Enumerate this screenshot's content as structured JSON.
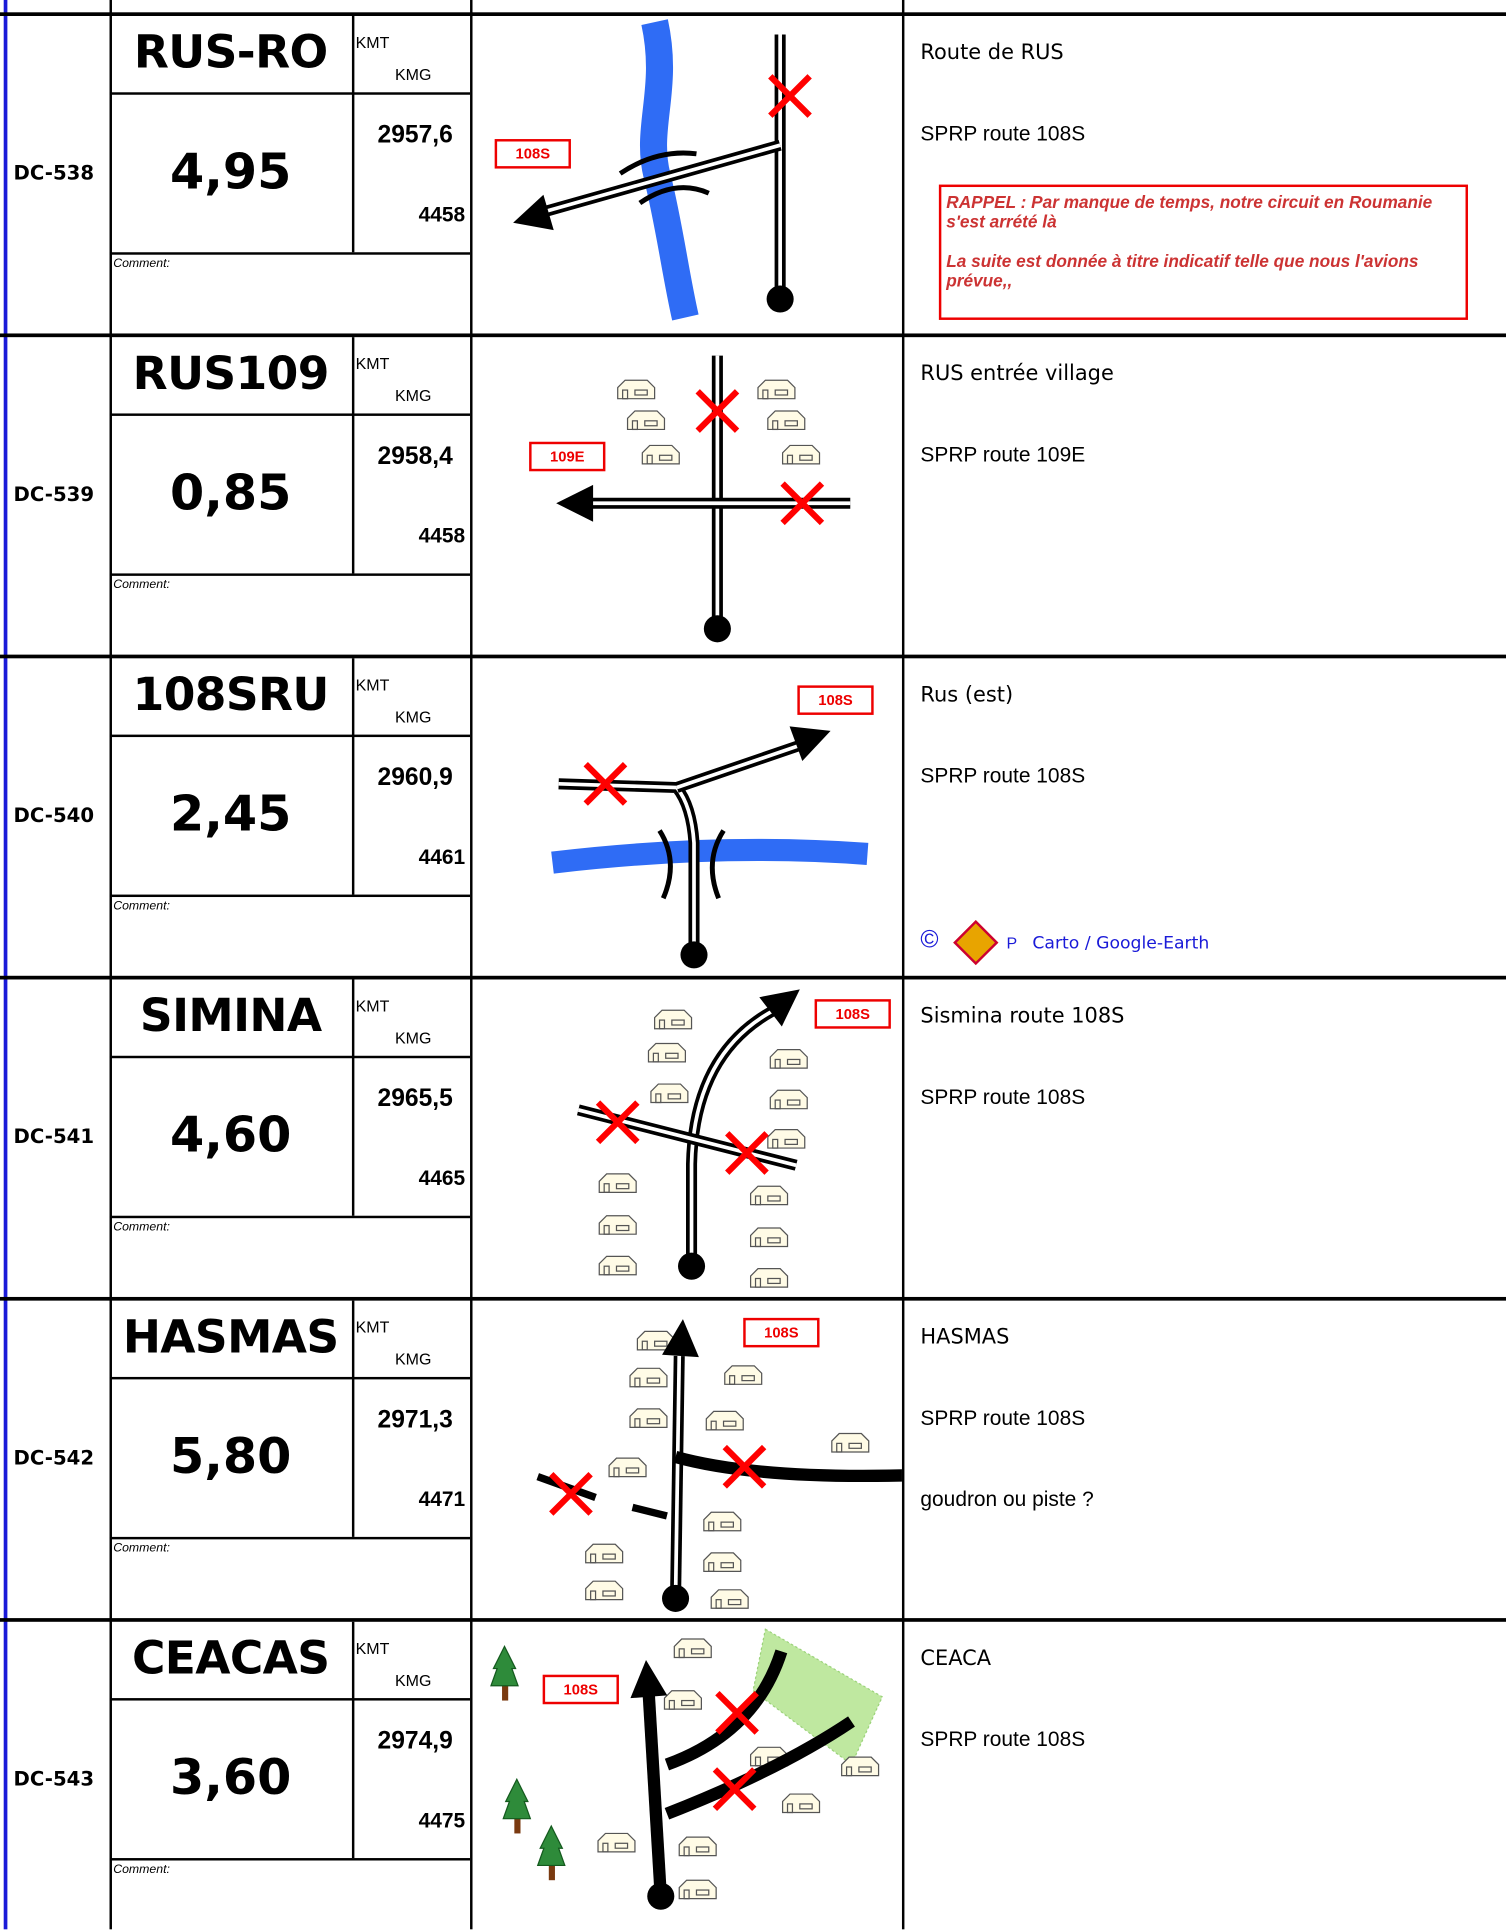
{
  "rows": [
    {
      "id": "DC-538",
      "code": "RUS-RO",
      "kmt_label": "KMT",
      "kmg_label": "KMG",
      "distance": "4,95",
      "kmt": "2957,6",
      "kmg": "4458",
      "comment_label": "Comment:",
      "road_label": "108S",
      "notes": [
        "Route de RUS",
        "SPRP route 108S"
      ]
    },
    {
      "id": "DC-539",
      "code": "RUS109",
      "kmt_label": "KMT",
      "kmg_label": "KMG",
      "distance": "0,85",
      "kmt": "2958,4",
      "kmg": "4458",
      "comment_label": "Comment:",
      "road_label": "109E",
      "notes": [
        "RUS entrée village",
        "SPRP route 109E"
      ]
    },
    {
      "id": "DC-540",
      "code": "108SRU",
      "kmt_label": "KMT",
      "kmg_label": "KMG",
      "distance": "2,45",
      "kmt": "2960,9",
      "kmg": "4461",
      "comment_label": "Comment:",
      "road_label": "108S",
      "notes": [
        "Rus (est)",
        "SPRP route 108S"
      ]
    },
    {
      "id": "DC-541",
      "code": "SIMINA",
      "kmt_label": "KMT",
      "kmg_label": "KMG",
      "distance": "4,60",
      "kmt": "2965,5",
      "kmg": "4465",
      "comment_label": "Comment:",
      "road_label": "108S",
      "notes": [
        "Sismina route 108S",
        "SPRP route 108S"
      ]
    },
    {
      "id": "DC-542",
      "code": "HASMAS",
      "kmt_label": "KMT",
      "kmg_label": "KMG",
      "distance": "5,80",
      "kmt": "2971,3",
      "kmg": "4471",
      "comment_label": "Comment:",
      "road_label": "108S",
      "notes": [
        "HASMAS",
        "SPRP route 108S",
        "goudron ou piste ?"
      ]
    },
    {
      "id": "DC-543",
      "code": "CEACAS",
      "kmt_label": "KMT",
      "kmg_label": "KMG",
      "distance": "3,60",
      "kmt": "2974,9",
      "kmg": "4475",
      "comment_label": "Comment:",
      "road_label": "108S",
      "notes": [
        "CEACA",
        "SPRP route 108S"
      ]
    }
  ],
  "rappel": {
    "lines": [
      "RAPPEL : Par manque de temps, notre circuit  en Roumanie s'est arrété là",
      "La suite est donnée à titre indicatif telle que nous l'avions prévue,,"
    ]
  },
  "credit": {
    "symbol": "©",
    "letter": "P",
    "text": "Carto / Google-Earth"
  }
}
